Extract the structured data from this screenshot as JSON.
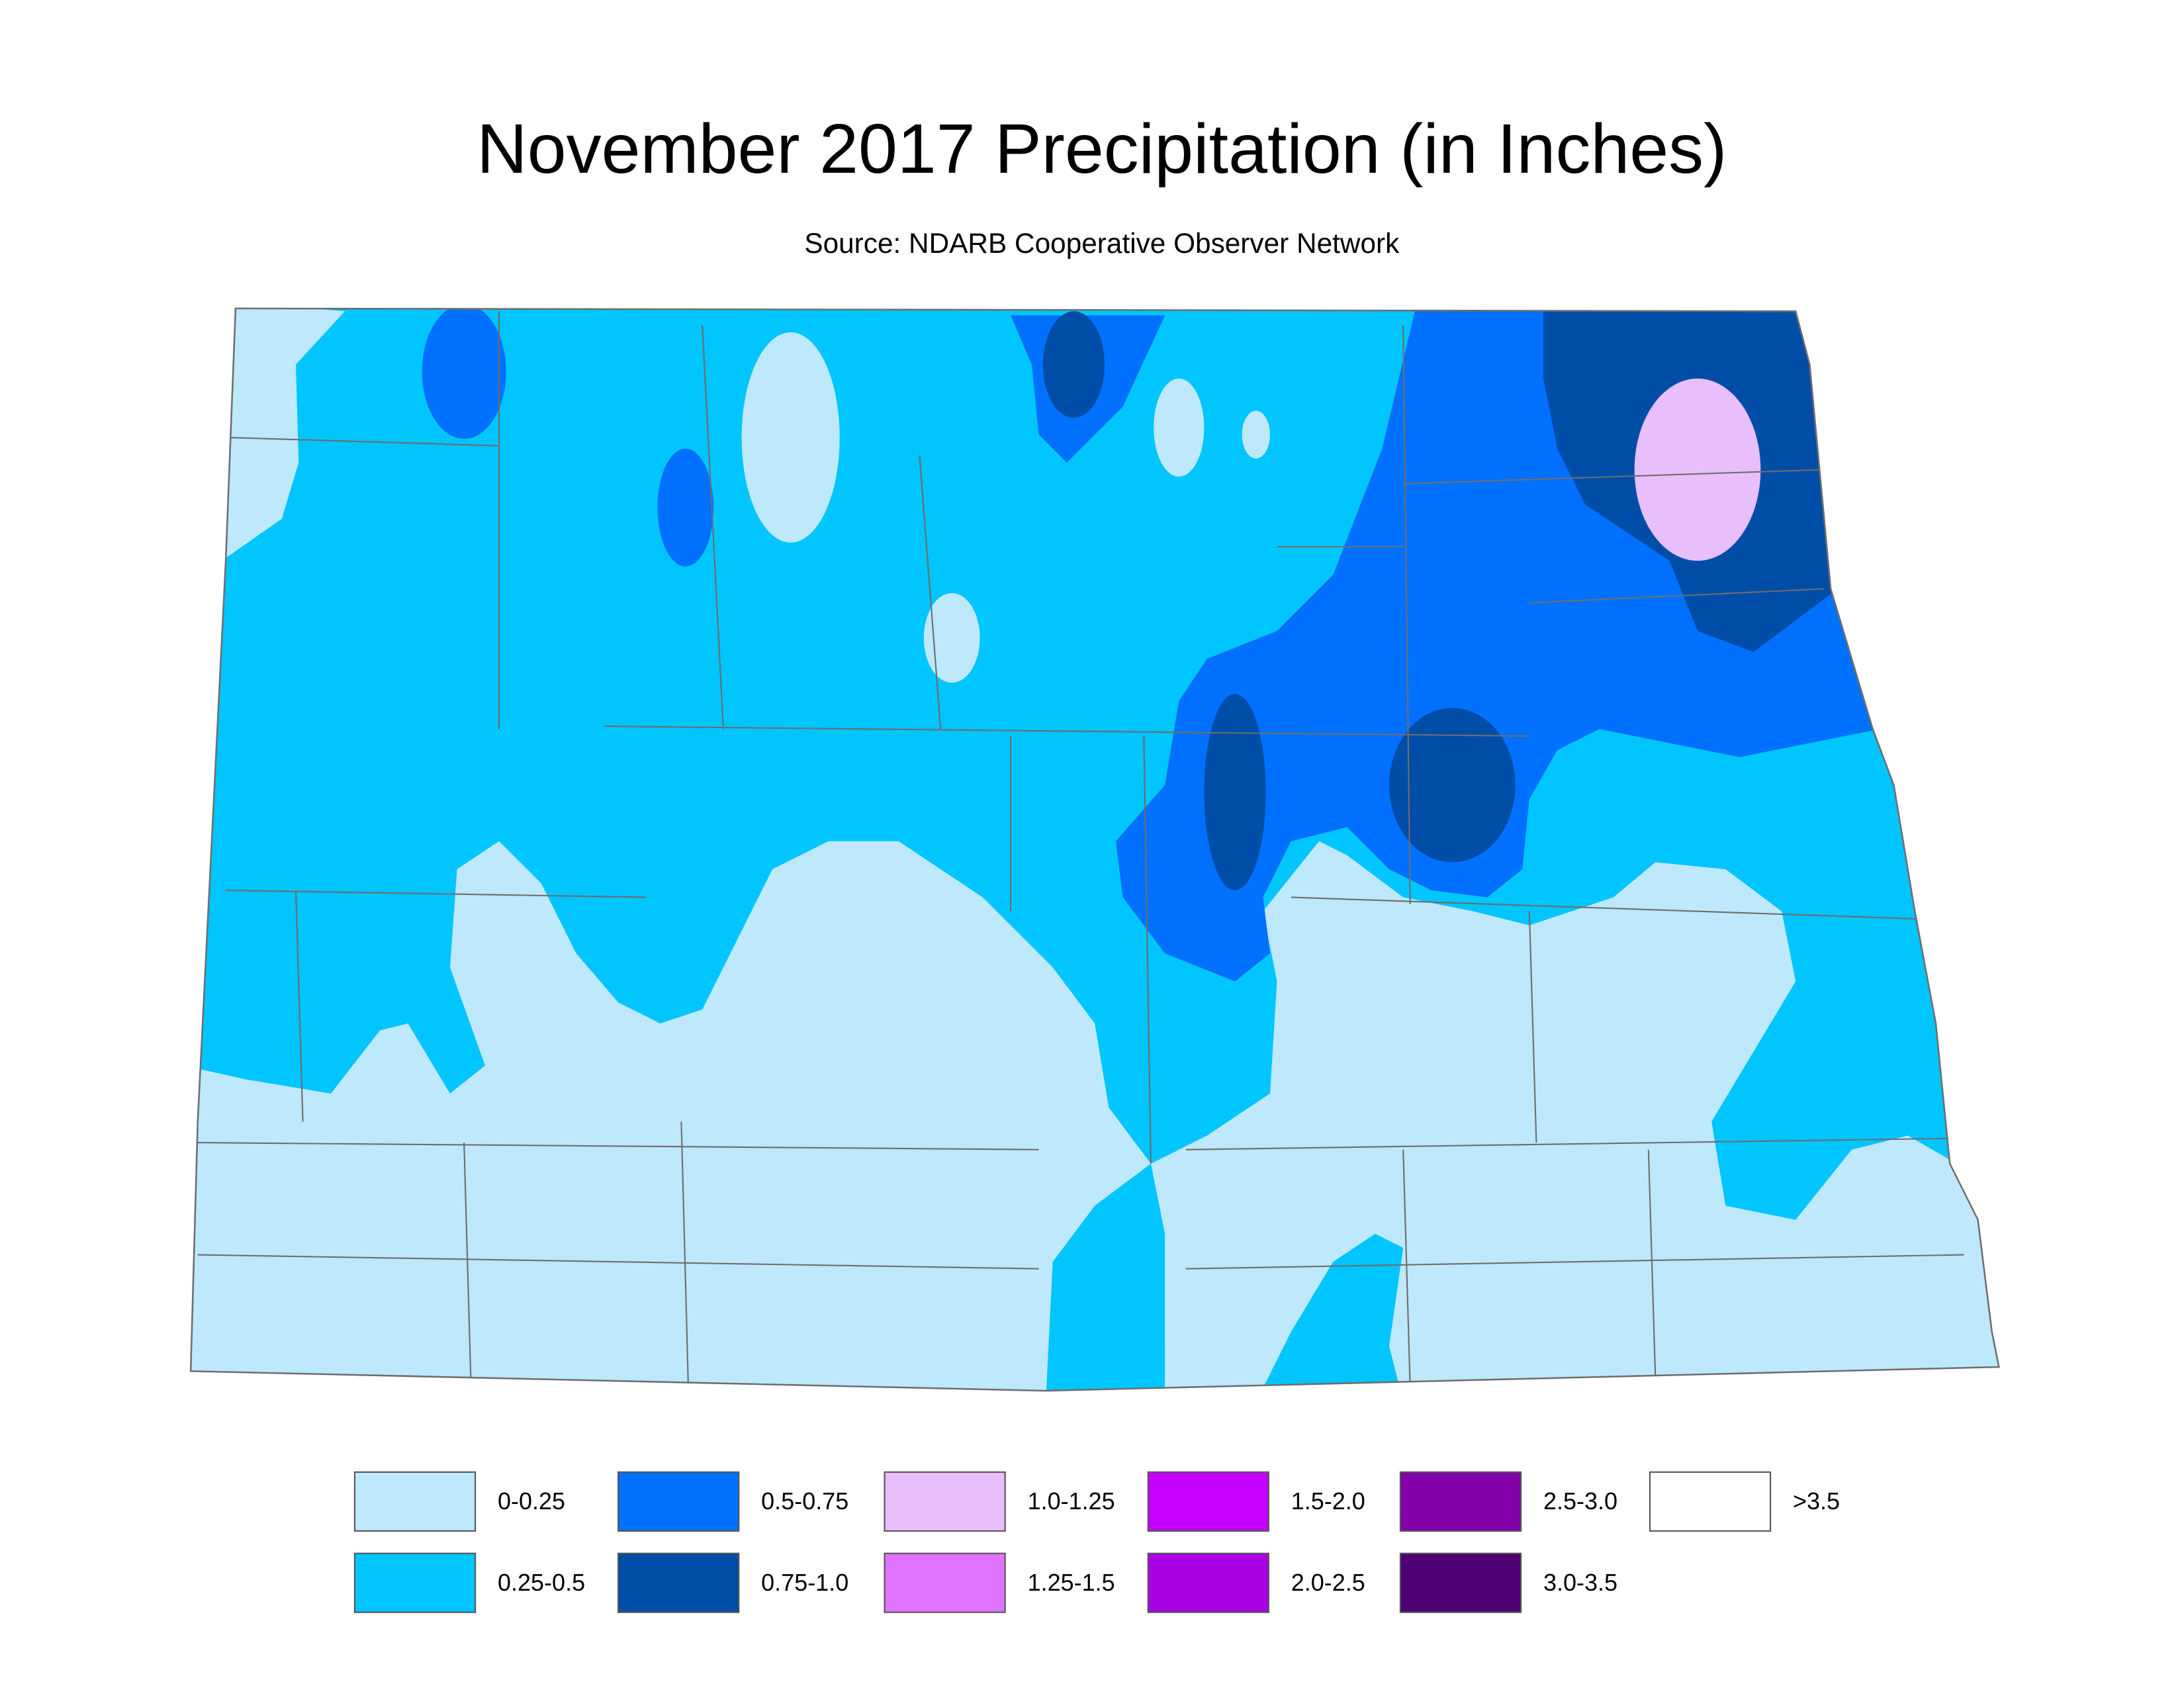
{
  "title": "November 2017 Precipitation (in Inches)",
  "subtitle": "Source: NDARB Cooperative Observer Network",
  "legend": {
    "items": [
      {
        "label": "0-0.25",
        "color": "#bee8fc"
      },
      {
        "label": "0.25-0.5",
        "color": "#00c5ff"
      },
      {
        "label": "0.5-0.75",
        "color": "#0070ff"
      },
      {
        "label": "0.75-1.0",
        "color": "#004da8"
      },
      {
        "label": "1.0-1.25",
        "color": "#e8befc"
      },
      {
        "label": "1.25-1.5",
        "color": "#df73ff"
      },
      {
        "label": "1.5-2.0",
        "color": "#c500ff"
      },
      {
        "label": "2.0-2.5",
        "color": "#a900e6"
      },
      {
        "label": "2.5-3.0",
        "color": "#8400a8"
      },
      {
        "label": "3.0-3.5",
        "color": "#4c0073"
      },
      {
        "label": ">3.5",
        "color": "#ffffff"
      }
    ]
  }
}
